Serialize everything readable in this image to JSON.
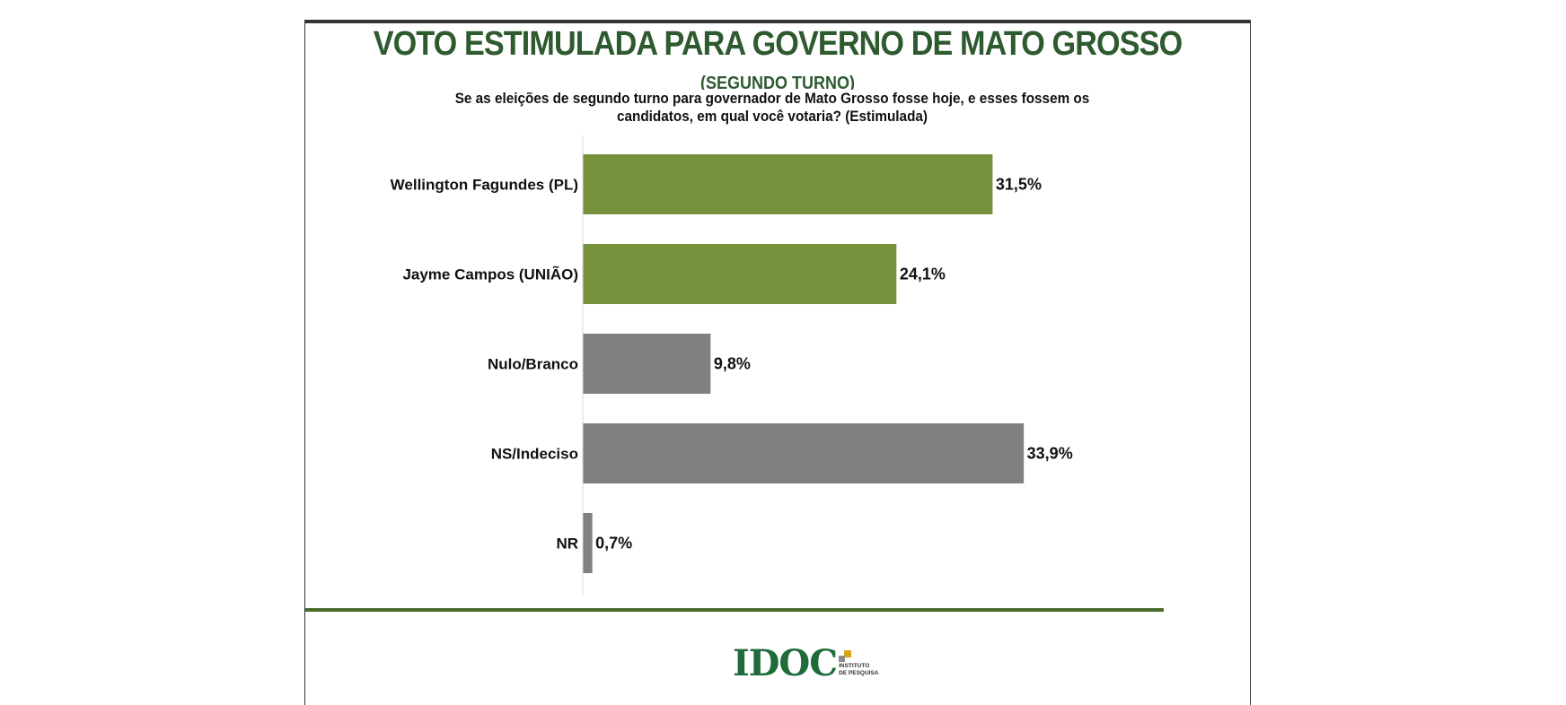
{
  "header": {
    "title": "VOTO ESTIMULADA PARA GOVERNO DE MATO GROSSO",
    "subtitle": "(SEGUNDO TURNO)",
    "question": "Se as eleições de segundo turno para governador de Mato Grosso fosse hoje, e esses fossem os candidatos, em qual você votaria? (Estimulada)"
  },
  "chart_data": {
    "type": "bar",
    "orientation": "horizontal",
    "title": "VOTO ESTIMULADA PARA GOVERNO DE MATO GROSSO",
    "subtitle": "(SEGUNDO TURNO)",
    "categories": [
      "Wellington Fagundes (PL)",
      "Jayme Campos (UNIÃO)",
      "Nulo/Branco",
      "NS/Indeciso",
      "NR"
    ],
    "values": [
      31.5,
      24.1,
      9.8,
      33.9,
      0.7
    ],
    "labels": [
      "31,5%",
      "24,1%",
      "9,8%",
      "33,9%",
      "0,7%"
    ],
    "colors": [
      "#77923c",
      "#77923c",
      "#808080",
      "#808080",
      "#808080"
    ],
    "xlim": [
      0,
      38
    ],
    "unit": "%",
    "xlabel": "",
    "ylabel": "",
    "grid": false
  },
  "logo": {
    "name": "IDOC",
    "tagline_1": "INSTITUTO",
    "tagline_2": "DE PESQUISA"
  },
  "colors": {
    "title_green": "#2e5a2f",
    "rule_green": "#4a6b2a",
    "logo_green": "#1f6b3a",
    "logo_gold": "#d9a21b"
  }
}
